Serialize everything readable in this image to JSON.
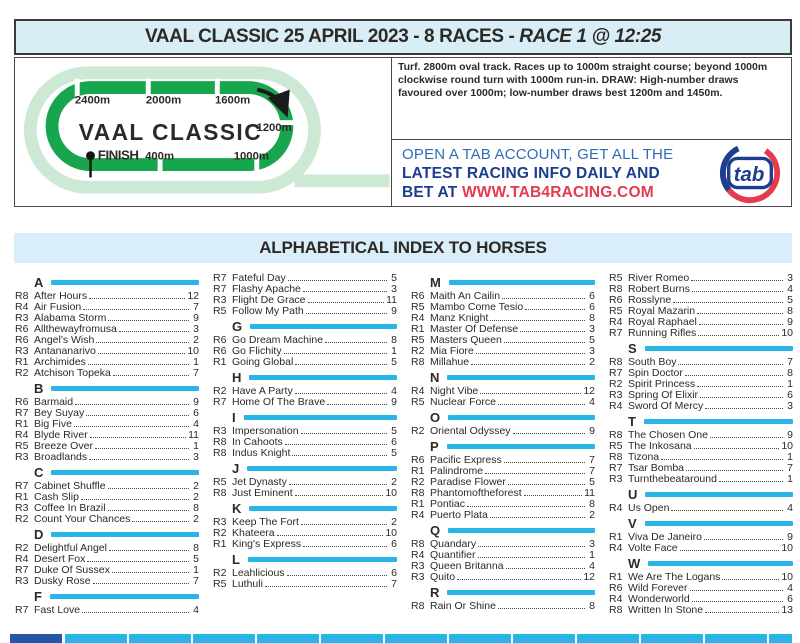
{
  "header": {
    "title_main": "VAAL CLASSIC 25 APRIL 2023 - 8 RACES - ",
    "title_race": "RACE 1 @ 12:25"
  },
  "track": {
    "name": "VAAL CLASSIC",
    "finish": "FINISH",
    "d2400": "2400m",
    "d2000": "2000m",
    "d1600": "1600m",
    "d1200": "1200m",
    "d1000": "1000m",
    "d400": "400m"
  },
  "course_info": "Turf. 2800m oval track. Races up to 1000m straight course; beyond 1000m clockwise round turn with 1000m run-in. DRAW: High-number draws favoured over 1000m; low-number draws best 1200m and 1450m.",
  "ad": {
    "line1": "OPEN A TAB ACCOUNT, GET ALL THE",
    "line2": "LATEST RACING INFO DAILY AND",
    "line3_prefix": "BET AT ",
    "line3_url": "WWW.TAB4RACING.COM",
    "logo_text": "tab"
  },
  "index": {
    "title": "ALPHABETICAL INDEX TO HORSES",
    "columns": [
      [
        {
          "letter": "A"
        },
        {
          "race": "R8",
          "name": "After Hours",
          "page": "12"
        },
        {
          "race": "R4",
          "name": "Air Fusion",
          "page": "7"
        },
        {
          "race": "R3",
          "name": "Alabama Storm",
          "page": "9"
        },
        {
          "race": "R6",
          "name": "Allthewayfromusa",
          "page": "3"
        },
        {
          "race": "R6",
          "name": "Angel's Wish",
          "page": "2"
        },
        {
          "race": "R3",
          "name": "Antananarivo",
          "page": "10"
        },
        {
          "race": "R1",
          "name": "Archimides",
          "page": "1"
        },
        {
          "race": "R2",
          "name": "Atchison Topeka",
          "page": "7"
        },
        {
          "letter": "B"
        },
        {
          "race": "R6",
          "name": "Barmaid",
          "page": "9"
        },
        {
          "race": "R7",
          "name": "Bey Suyay",
          "page": "6"
        },
        {
          "race": "R1",
          "name": "Big Five",
          "page": "4"
        },
        {
          "race": "R4",
          "name": "Blyde River",
          "page": "11"
        },
        {
          "race": "R5",
          "name": "Breeze Over",
          "page": "1"
        },
        {
          "race": "R3",
          "name": "Broadlands",
          "page": "3"
        },
        {
          "letter": "C"
        },
        {
          "race": "R7",
          "name": "Cabinet Shuffle",
          "page": "2"
        },
        {
          "race": "R1",
          "name": "Cash Slip",
          "page": "2"
        },
        {
          "race": "R3",
          "name": "Coffee In Brazil",
          "page": "8"
        },
        {
          "race": "R2",
          "name": "Count Your Chances",
          "page": "2"
        },
        {
          "letter": "D"
        },
        {
          "race": "R2",
          "name": "Delightful Angel",
          "page": "8"
        },
        {
          "race": "R4",
          "name": "Desert Fox",
          "page": "5"
        },
        {
          "race": "R7",
          "name": "Duke Of Sussex",
          "page": "1"
        },
        {
          "race": "R3",
          "name": "Dusky Rose",
          "page": "7"
        },
        {
          "letter": "F"
        },
        {
          "race": "R7",
          "name": "Fast Love",
          "page": "4"
        }
      ],
      [
        {
          "race": "R7",
          "name": "Fateful Day",
          "page": "5"
        },
        {
          "race": "R7",
          "name": "Flashy Apache",
          "page": "3"
        },
        {
          "race": "R3",
          "name": "Flight De Grace",
          "page": "11"
        },
        {
          "race": "R5",
          "name": "Follow My Path",
          "page": "9"
        },
        {
          "letter": "G"
        },
        {
          "race": "R6",
          "name": "Go Dream Machine",
          "page": "8"
        },
        {
          "race": "R6",
          "name": "Go Flichity",
          "page": "1"
        },
        {
          "race": "R1",
          "name": "Going Global",
          "page": "5"
        },
        {
          "letter": "H"
        },
        {
          "race": "R2",
          "name": "Have A Party",
          "page": "4"
        },
        {
          "race": "R7",
          "name": "Home Of The Brave",
          "page": "9"
        },
        {
          "letter": "I"
        },
        {
          "race": "R3",
          "name": "Impersonation",
          "page": "5"
        },
        {
          "race": "R8",
          "name": "In Cahoots",
          "page": "6"
        },
        {
          "race": "R8",
          "name": "Indus Knight",
          "page": "5"
        },
        {
          "letter": "J"
        },
        {
          "race": "R5",
          "name": "Jet Dynasty",
          "page": "2"
        },
        {
          "race": "R8",
          "name": "Just Eminent",
          "page": "10"
        },
        {
          "letter": "K"
        },
        {
          "race": "R3",
          "name": "Keep The Fort",
          "page": "2"
        },
        {
          "race": "R2",
          "name": "Khateera",
          "page": "10"
        },
        {
          "race": "R1",
          "name": "King's Express",
          "page": "6"
        },
        {
          "letter": "L"
        },
        {
          "race": "R2",
          "name": "Leahlicious",
          "page": "6"
        },
        {
          "race": "R5",
          "name": "Luthuli",
          "page": "7"
        }
      ],
      [
        {
          "letter": "M"
        },
        {
          "race": "R6",
          "name": "Maith An Cailin",
          "page": "6"
        },
        {
          "race": "R5",
          "name": "Mambo Come Tesio",
          "page": "6"
        },
        {
          "race": "R4",
          "name": "Manz Knight",
          "page": "8"
        },
        {
          "race": "R1",
          "name": "Master Of Defense",
          "page": "3"
        },
        {
          "race": "R5",
          "name": "Masters Queen",
          "page": "5"
        },
        {
          "race": "R2",
          "name": "Mia Fiore",
          "page": "3"
        },
        {
          "race": "R8",
          "name": "Millahue",
          "page": "2"
        },
        {
          "letter": "N"
        },
        {
          "race": "R4",
          "name": "Night Vibe",
          "page": "12"
        },
        {
          "race": "R5",
          "name": "Nuclear Force",
          "page": "4"
        },
        {
          "letter": "O"
        },
        {
          "race": "R2",
          "name": "Oriental Odyssey",
          "page": "9"
        },
        {
          "letter": "P"
        },
        {
          "race": "R6",
          "name": "Pacific Express",
          "page": "7"
        },
        {
          "race": "R1",
          "name": "Palindrome",
          "page": "7"
        },
        {
          "race": "R2",
          "name": "Paradise Flower",
          "page": "5"
        },
        {
          "race": "R8",
          "name": "Phantomoftheforest",
          "page": "11"
        },
        {
          "race": "R1",
          "name": "Pontiac",
          "page": "8"
        },
        {
          "race": "R4",
          "name": "Puerto Plata",
          "page": "2"
        },
        {
          "letter": "Q"
        },
        {
          "race": "R8",
          "name": "Quandary",
          "page": "3"
        },
        {
          "race": "R4",
          "name": "Quantifier",
          "page": "1"
        },
        {
          "race": "R3",
          "name": "Queen Britanna",
          "page": "4"
        },
        {
          "race": "R3",
          "name": "Quito",
          "page": "12"
        },
        {
          "letter": "R"
        },
        {
          "race": "R8",
          "name": "Rain Or Shine",
          "page": "8"
        }
      ],
      [
        {
          "race": "R5",
          "name": "River Romeo",
          "page": "3"
        },
        {
          "race": "R8",
          "name": "Robert Burns",
          "page": "4"
        },
        {
          "race": "R6",
          "name": "Rosslyne",
          "page": "5"
        },
        {
          "race": "R5",
          "name": "Royal Mazarin",
          "page": "8"
        },
        {
          "race": "R4",
          "name": "Royal Raphael",
          "page": "9"
        },
        {
          "race": "R7",
          "name": "Running Rifles",
          "page": "10"
        },
        {
          "letter": "S"
        },
        {
          "race": "R8",
          "name": "South Boy",
          "page": "7"
        },
        {
          "race": "R7",
          "name": "Spin Doctor",
          "page": "8"
        },
        {
          "race": "R2",
          "name": "Spirit Princess",
          "page": "1"
        },
        {
          "race": "R3",
          "name": "Spring Of Elixir",
          "page": "6"
        },
        {
          "race": "R4",
          "name": "Sword Of Mercy",
          "page": "3"
        },
        {
          "letter": "T"
        },
        {
          "race": "R8",
          "name": "The Chosen One",
          "page": "9"
        },
        {
          "race": "R5",
          "name": "The Inkosana",
          "page": "10"
        },
        {
          "race": "R8",
          "name": "Tizona",
          "page": "1"
        },
        {
          "race": "R7",
          "name": "Tsar Bomba",
          "page": "7"
        },
        {
          "race": "R3",
          "name": "Turnthebeataround",
          "page": "1"
        },
        {
          "letter": "U"
        },
        {
          "race": "R4",
          "name": "Us Open",
          "page": "4"
        },
        {
          "letter": "V"
        },
        {
          "race": "R1",
          "name": "Viva De Janeiro",
          "page": "9"
        },
        {
          "race": "R4",
          "name": "Volte Face",
          "page": "10"
        },
        {
          "letter": "W"
        },
        {
          "race": "R1",
          "name": "We Are The Logans",
          "page": "10"
        },
        {
          "race": "R6",
          "name": "Wild Forever",
          "page": "4"
        },
        {
          "race": "R4",
          "name": "Wonderworld",
          "page": "6"
        },
        {
          "race": "R8",
          "name": "Written In Stone",
          "page": "13"
        }
      ]
    ]
  },
  "colors": {
    "accent_cyan": "#29b5e8",
    "header_blue": "#d9edf7",
    "track_green": "#17a54d",
    "track_light_green": "#cde9d6",
    "tab_navy": "#1b3e8e",
    "tab_red": "#e63a4d",
    "table_corner_blue": "#2356a8"
  }
}
